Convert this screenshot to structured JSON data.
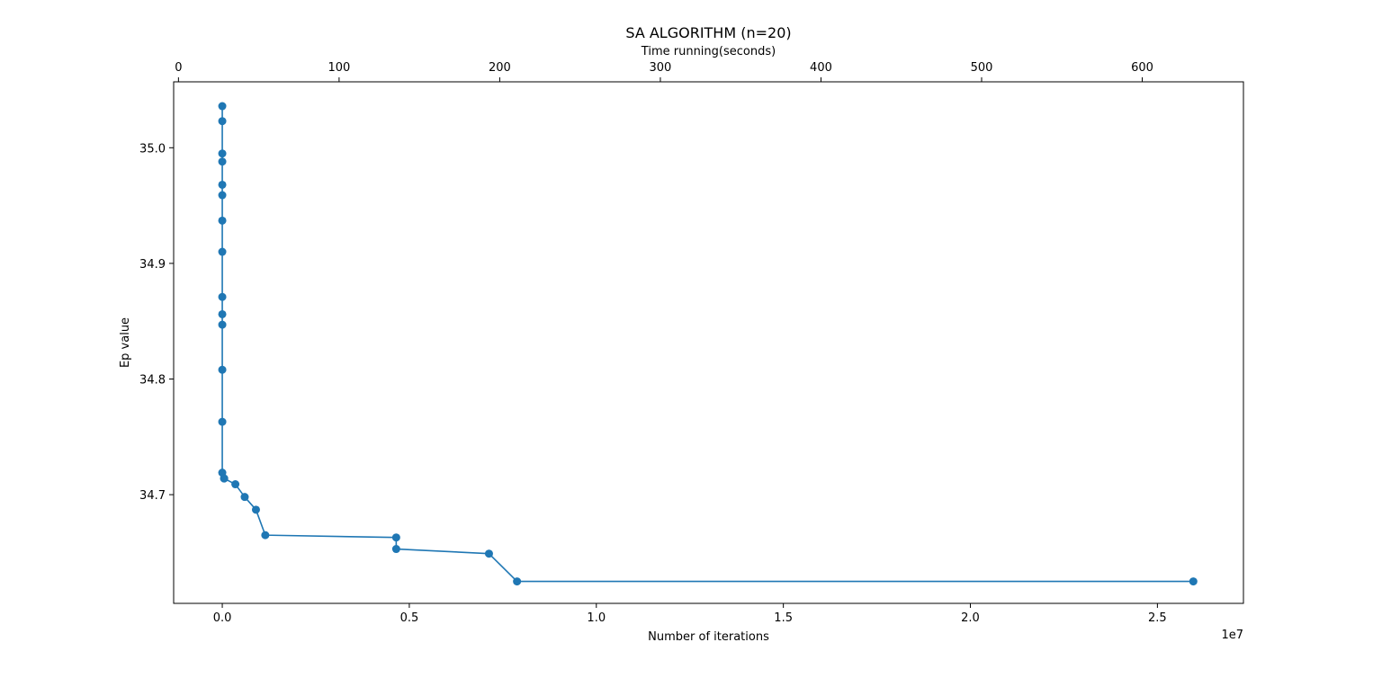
{
  "chart_data": {
    "type": "line",
    "title": "SA ALGORITHM (n=20)",
    "xlabel": "Number of iterations",
    "x_offset_text": "1e7",
    "ylabel": "Ep value",
    "top_xlabel": "Time running(seconds)",
    "x_ticks": [
      "0.0",
      "0.5",
      "1.0",
      "1.5",
      "2.0",
      "2.5"
    ],
    "x_tick_values": [
      0,
      5000000,
      10000000,
      15000000,
      20000000,
      25000000
    ],
    "top_x_ticks": [
      "0",
      "100",
      "200",
      "300",
      "400",
      "500",
      "600"
    ],
    "top_x_tick_values": [
      0,
      100,
      200,
      300,
      400,
      500,
      600
    ],
    "y_ticks": [
      "34.7",
      "34.8",
      "34.9",
      "35.0"
    ],
    "y_tick_values": [
      34.7,
      34.8,
      34.9,
      35.0
    ],
    "xlim": [
      -1300000,
      27300000
    ],
    "ylim": [
      34.606,
      35.057
    ],
    "top_xlim": [
      -3.0,
      663.0
    ],
    "grid": false,
    "marker": "circle",
    "line_color": "#1f77b4",
    "series": [
      {
        "x": [
          0,
          0,
          0,
          0,
          0,
          0,
          0,
          0,
          0,
          0,
          0,
          0,
          0,
          0,
          50000,
          50000,
          350000,
          600000,
          900000,
          1150000,
          4650000,
          4650000,
          7130000,
          7880000,
          25960000
        ],
        "y": [
          35.036,
          35.023,
          34.995,
          34.988,
          34.968,
          34.959,
          34.937,
          34.91,
          34.871,
          34.856,
          34.847,
          34.808,
          34.763,
          34.719,
          34.714,
          34.714,
          34.709,
          34.698,
          34.687,
          34.665,
          34.663,
          34.653,
          34.649,
          34.625,
          34.625
        ]
      }
    ]
  }
}
